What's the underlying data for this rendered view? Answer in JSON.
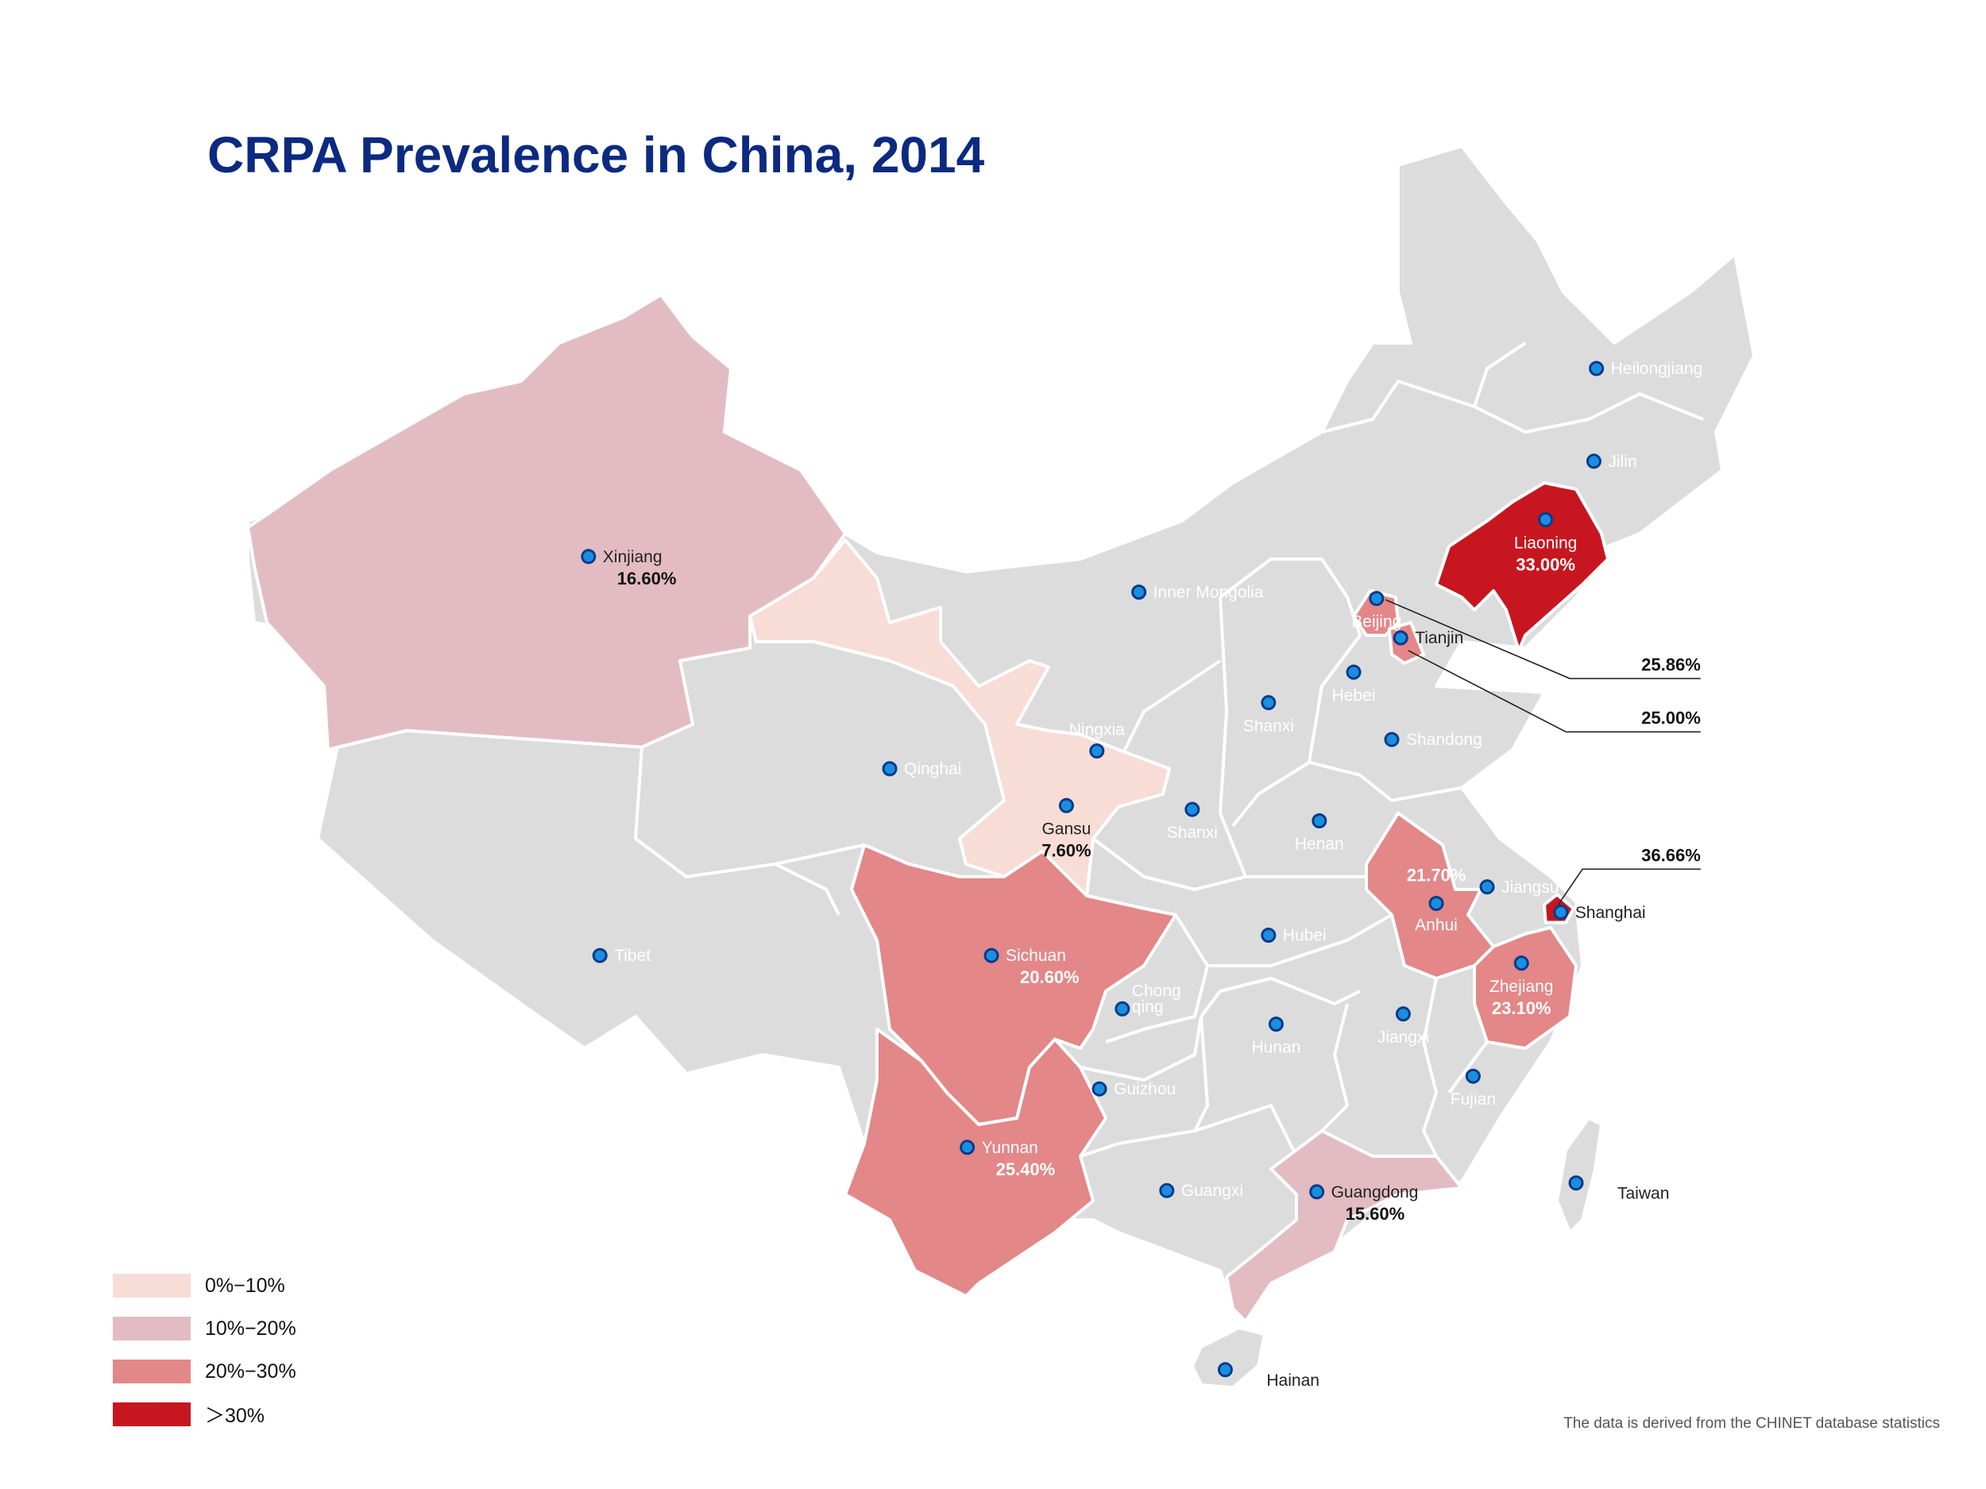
{
  "title": "CRPA Prevalence in China, 2014",
  "legend": [
    {
      "label": "0%−10%",
      "color": "#f8dcd6"
    },
    {
      "label": "10%−20%",
      "color": "#e3bcc3"
    },
    {
      "label": "20%−30%",
      "color": "#e38788"
    },
    {
      "label": "＞30%",
      "color": "#c7161f"
    }
  ],
  "base_color": "#dcdcdc",
  "marker_color": "#1a8fe0",
  "provinces": [
    {
      "name": "Heilongjiang",
      "value": null
    },
    {
      "name": "Jilin",
      "value": null
    },
    {
      "name": "Liaoning",
      "value": "33.00%"
    },
    {
      "name": "Inner Mongolia",
      "value": null
    },
    {
      "name": "Beijing",
      "value": null
    },
    {
      "name": "Tianjin",
      "value": null
    },
    {
      "name": "Hebei",
      "value": null
    },
    {
      "name": "Shanxi",
      "value": null
    },
    {
      "name": "Shandong",
      "value": null
    },
    {
      "name": "Ningxia",
      "value": null
    },
    {
      "name": "Qinghai",
      "value": null
    },
    {
      "name": "Gansu",
      "value": "7.60%"
    },
    {
      "name": "Shanxi",
      "value": null
    },
    {
      "name": "Henan",
      "value": null
    },
    {
      "name": "Jiangsu",
      "value": null
    },
    {
      "name": "Shanghai",
      "value": null
    },
    {
      "name": "Anhui",
      "value": "21.70%"
    },
    {
      "name": "Hubei",
      "value": null
    },
    {
      "name": "Zhejiang",
      "value": "23.10%"
    },
    {
      "name": "Xinjiang",
      "value": "16.60%"
    },
    {
      "name": "Tibet",
      "value": null
    },
    {
      "name": "Sichuan",
      "value": "20.60%"
    },
    {
      "name": "Chong qing",
      "value": null
    },
    {
      "name": "Hunan",
      "value": null
    },
    {
      "name": "Jiangxi",
      "value": null
    },
    {
      "name": "Fujian",
      "value": null
    },
    {
      "name": "Guizhou",
      "value": null
    },
    {
      "name": "Yunnan",
      "value": "25.40%"
    },
    {
      "name": "Guangxi",
      "value": null
    },
    {
      "name": "Guangdong",
      "value": "15.60%"
    },
    {
      "name": "Taiwan",
      "value": null
    },
    {
      "name": "Hainan",
      "value": null
    }
  ],
  "callouts": [
    {
      "province": "Beijing",
      "value": "25.86%"
    },
    {
      "province": "Tianjin",
      "value": "25.00%"
    },
    {
      "province": "Shanghai",
      "value": "36.66%"
    }
  ],
  "footer": "The data is derived from the CHINET database statistics"
}
